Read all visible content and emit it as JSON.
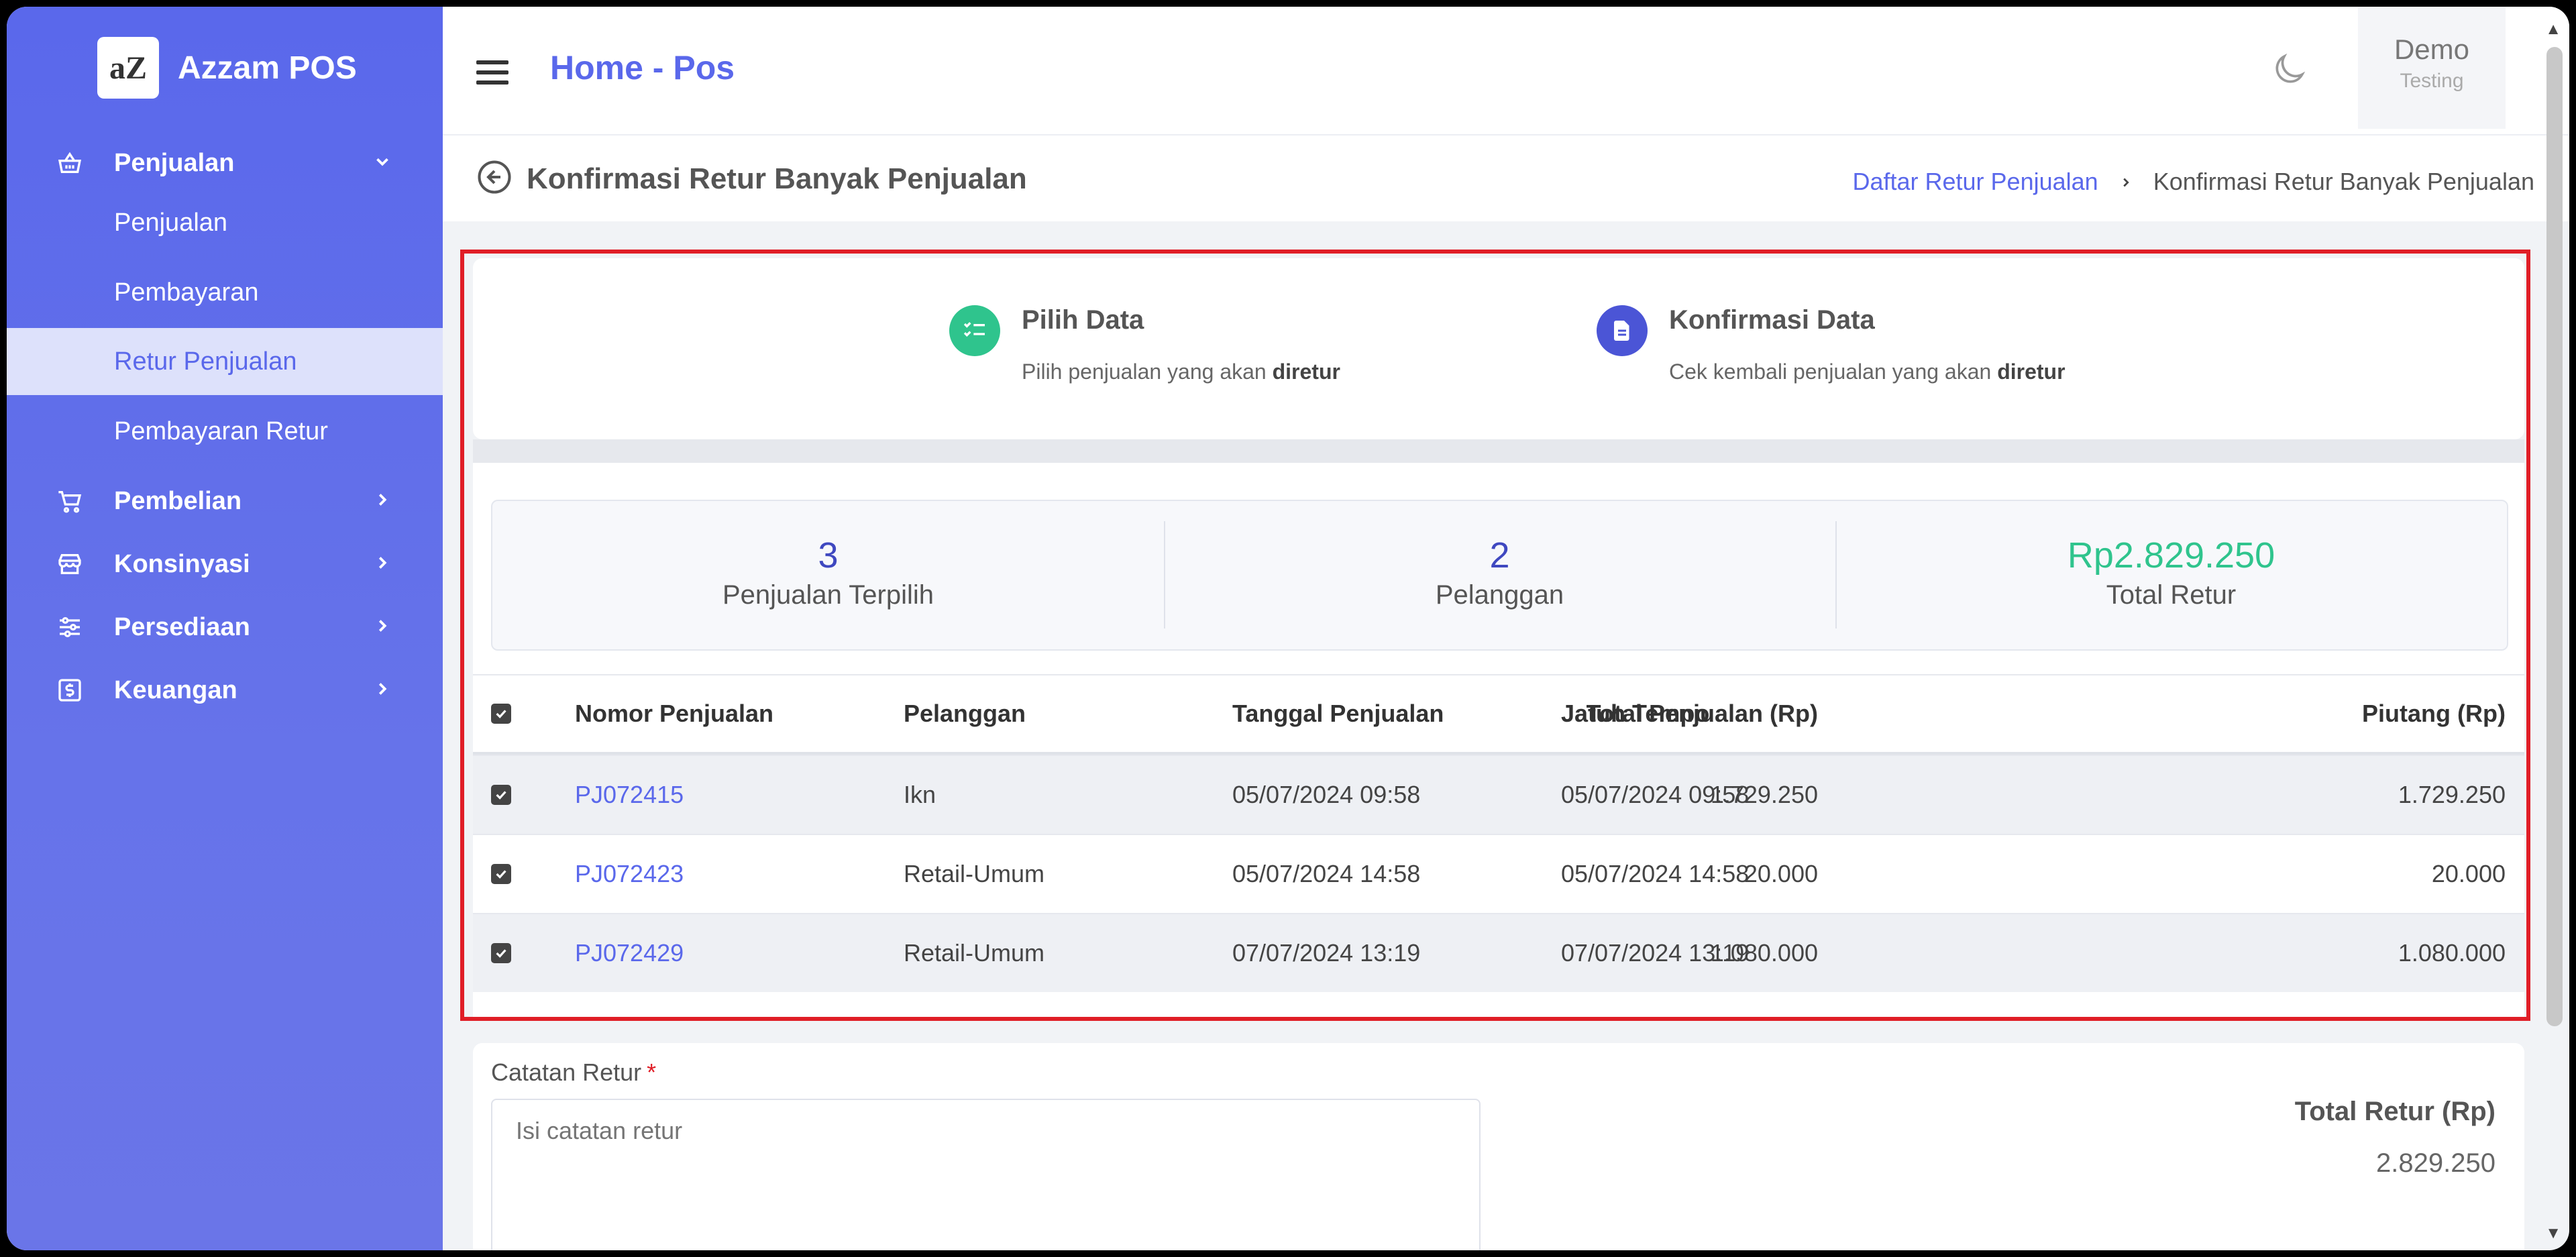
{
  "app": {
    "logo_text": "aZ",
    "name": "Azzam POS"
  },
  "sidebar": {
    "groups": [
      {
        "label": "Penjualan",
        "icon": "basket-icon",
        "expanded": true
      },
      {
        "label": "Pembelian",
        "icon": "cart-icon"
      },
      {
        "label": "Konsinyasi",
        "icon": "store-icon"
      },
      {
        "label": "Persediaan",
        "icon": "sliders-icon"
      },
      {
        "label": "Keuangan",
        "icon": "money-icon"
      }
    ],
    "sub_items": [
      {
        "label": "Penjualan"
      },
      {
        "label": "Pembayaran"
      },
      {
        "label": "Retur Penjualan",
        "active": true
      },
      {
        "label": "Pembayaran Retur"
      }
    ]
  },
  "header": {
    "title": "Home - Pos",
    "user": {
      "name": "Demo",
      "role": "Testing"
    }
  },
  "page": {
    "title": "Konfirmasi Retur Banyak Penjualan",
    "breadcrumb": {
      "link": "Daftar Retur Penjualan",
      "current": "Konfirmasi Retur Banyak Penjualan"
    }
  },
  "steps": [
    {
      "title": "Pilih Data",
      "desc": "Pilih penjualan yang akan ",
      "desc_bold": "diretur",
      "color": "#2fc48d"
    },
    {
      "title": "Konfirmasi Data",
      "desc": "Cek kembali penjualan yang akan ",
      "desc_bold": "diretur",
      "color": "#4b55d6"
    }
  ],
  "stats": [
    {
      "value": "3",
      "label": "Penjualan Terpilih"
    },
    {
      "value": "2",
      "label": "Pelanggan"
    },
    {
      "value": "Rp2.829.250",
      "label": "Total Retur"
    }
  ],
  "table": {
    "headers": [
      "Nomor Penjualan",
      "Pelanggan",
      "Tanggal Penjualan",
      "Jatuh Tempo",
      "Total Penjualan (Rp)",
      "Piutang (Rp)"
    ],
    "rows": [
      {
        "no": "PJ072415",
        "customer": "Ikn",
        "date": "05/07/2024 09:58",
        "due": "05/07/2024 09:58",
        "total": "1.729.250",
        "debt": "1.729.250"
      },
      {
        "no": "PJ072423",
        "customer": "Retail-Umum",
        "date": "05/07/2024 14:58",
        "due": "05/07/2024 14:58",
        "total": "20.000",
        "debt": "20.000"
      },
      {
        "no": "PJ072429",
        "customer": "Retail-Umum",
        "date": "07/07/2024 13:19",
        "due": "07/07/2024 13:19",
        "total": "1.080.000",
        "debt": "1.080.000"
      }
    ]
  },
  "notes": {
    "label": "Catatan Retur",
    "required_mark": "*",
    "placeholder": "Isi catatan retur",
    "total_label": "Total Retur (Rp)",
    "total_value": "2.829.250"
  },
  "colors": {
    "primary": "#5a68eb",
    "success": "#2fc48d",
    "highlight": "#e01e27"
  }
}
